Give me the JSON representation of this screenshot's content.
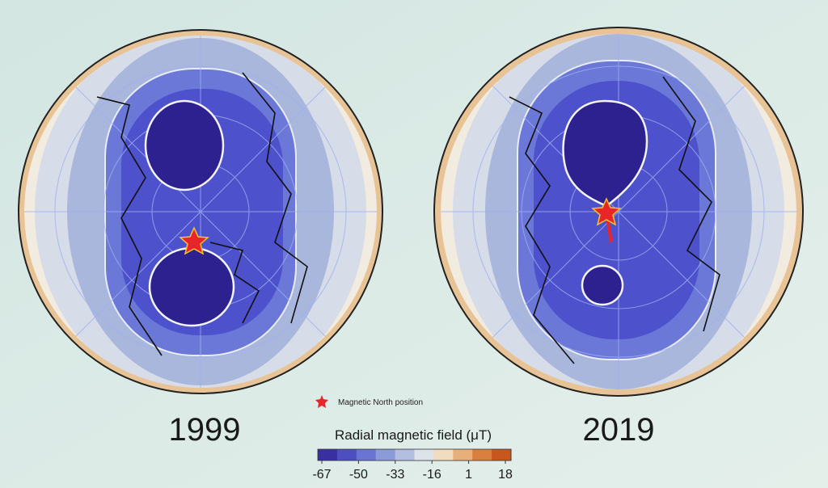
{
  "maps": [
    {
      "label": "1999"
    },
    {
      "label": "2019"
    }
  ],
  "legend": {
    "marker_label": "Magnetic North position"
  },
  "colorbar": {
    "title": "Radial magnetic field (μT)",
    "ticks": [
      -67,
      -50,
      -33,
      -16,
      1,
      18
    ],
    "colors": [
      "#3a2fa0",
      "#4c4fc0",
      "#6a74d2",
      "#8b9ad8",
      "#b3bfe0",
      "#dde3ea",
      "#f1dcc0",
      "#e7b07a",
      "#d9803f",
      "#c8561f"
    ]
  }
}
